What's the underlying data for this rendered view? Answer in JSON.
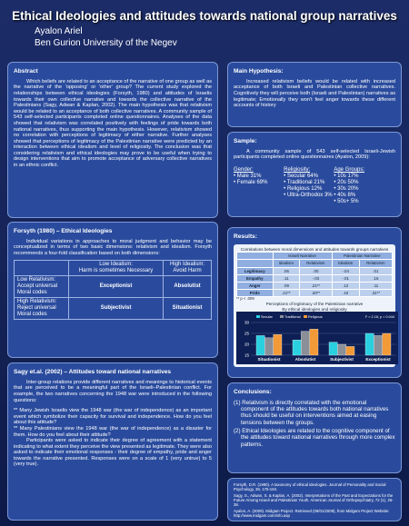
{
  "header": {
    "title": "Ethical Ideologies and attitudes towards national group narratives",
    "author": "Ayalon Ariel",
    "affiliation": "Ben Gurion University of the Negev"
  },
  "abstract": {
    "heading": "Abstract",
    "text": "Which beliefs are related to an acceptance of the narrative of one group as well as the narrative of the 'opposing' or 'other' group? The current study explored the relationships between ethical ideologies (Forsyth, 1980) and attitudes of Israelis towards their own collective narrative and towards the collective narrative of the Palestinians (Sagy, Adwan & Kaplan, 2002). The main hypothesis was that relativism would be related to an acceptance of both collective narratives. A community sample of 543 self-selected participants completed online questionnaires. Analyses of the data showed that relativism was correlated positively with feelings of pride towards both national narratives, thus supporting the main hypothesis. However, relativism showed no correlation with perceptions of legitimacy of either narrative. Further analyses showed that perceptions of legitimacy of the Palestinian narrative were predicted by an interaction between ethical idealism and level of religiosity. The conclusion was that considering relativism and ethical ideologies may prove to be useful when trying to design interventions that aim to promote acceptance of adversary collective narratives in an ethnic conflict."
  },
  "forsyth": {
    "heading": "Forsyth (1980) – Ethical Ideologies",
    "text": "Individual variations in approaches to moral judgment and behavior may be conceptualized in terms of two basic dimensions: relativism and idealism. Forsyth recommends a four-fold classification based on both dimensions:",
    "table": {
      "columns": [
        [
          "Low Idealism:",
          "Harm is sometimes Necessary"
        ],
        [
          "High Idealism:",
          "Avoid Harm"
        ]
      ],
      "rows": [
        {
          "label": [
            "Low Relativism:",
            "Accept universal",
            "Moral codes"
          ],
          "cells": [
            "Exceptionist",
            "Absolutist"
          ]
        },
        {
          "label": [
            "High Relativism:",
            "Reject universal",
            "Moral codes"
          ],
          "cells": [
            "Subjectivist",
            "Situationist"
          ]
        }
      ]
    }
  },
  "sagy": {
    "heading": "Sagy et.al. (2002) – Attitudes toward national narratives",
    "paragraphs": [
      "Inter-group relations provide different narratives and meanings to historical events that are perceived to be a meaningful part of the Israeli–Palestinian conflict. For example, the two narratives concerning the 1948 war were introduced in the following questions:",
      "** Many Jewish Israelis view the 1948 war (the war of independence) as an important event which symbolize their capacity for survival and independence. How do you feel about this attitude?",
      "** Many Palestinians view the 1948 war (the war of independence) as a disaster for them. How do you feel about their attitude?",
      "Participants were asked to indicate their degree of agreement with a statement indicating to what extent they perceive the view presented as legitimate. They were also asked to indicate their emotional responses - their degree of empathy, pride and anger towards the narrative presented. Responses were on a scale of 1 (very untrue) to 5 (very true)."
    ]
  },
  "hypothesis": {
    "heading": "Main Hypothesis:",
    "text": "Increased relativism beliefs would be related with increased acceptance of both Israeli and Palestinian collective narratives. Cognitively they will perceive both (Israeli and Palestinian) narratives as legitimate; Emotionally they won't feel anger towards these different accounts of history"
  },
  "sample": {
    "heading": "Sample:",
    "text": "A community sample of 543 self-selected Israeli-Jewish participants completed online questionnaires (Ayalon, 2009):",
    "groups": [
      {
        "title": "Gender:",
        "items": [
          "Male 31%",
          "Female 69%"
        ]
      },
      {
        "title": "Religiosity:",
        "items": [
          "Secular 64%",
          "Traditional 21%",
          "Religious 12%",
          "Ultra-Orthodox 3%"
        ]
      },
      {
        "title": "Age Groups:",
        "items": [
          "10s 17%",
          "20s 50%",
          "30s 20%",
          "40s 8%",
          "50s+ 5%"
        ]
      }
    ]
  },
  "results": {
    "heading": "Results:",
    "subtitle": "Correlations between moral dimensions and attitudes towards groups narratives",
    "table": {
      "groups": [
        "Israeli Narrative",
        "Palestinian Narrative"
      ],
      "columns": [
        "Idealism",
        "Relativism",
        "Idealism",
        "Relativism"
      ],
      "rows": [
        {
          "label": "Legitimacy",
          "cells": [
            ".06",
            ".00",
            "-.04",
            ".01"
          ]
        },
        {
          "label": "Empathy",
          "cells": [
            ".11",
            "-.03",
            "-.01",
            ".16"
          ]
        },
        {
          "label": "Anger",
          "cells": [
            ".09",
            ".21**",
            ".12",
            ".11"
          ]
        },
        {
          "label": "Pride",
          "cells": [
            ".21**",
            ".20**",
            ".10",
            ".31**"
          ]
        }
      ]
    },
    "note": "** p < .009"
  },
  "chart_data": {
    "type": "bar",
    "title": "Perceptions of legitimacy of the Palestinian narrative",
    "subtitle": "By ethical ideologies and religiosity",
    "annotation": "F = 2.18, p = 0.044",
    "categories": [
      "Situationist",
      "Absolutist",
      "Subjectivist",
      "Exceptionist"
    ],
    "series": [
      {
        "name": "Secular",
        "color": "#2ad0e0",
        "values": [
          24,
          22,
          21,
          25
        ]
      },
      {
        "name": "Traditional",
        "color": "#8a8f98",
        "values": [
          23,
          26,
          20,
          24
        ]
      },
      {
        "name": "Religious",
        "color": "#f29a38",
        "values": [
          24.5,
          27,
          19,
          25
        ]
      }
    ],
    "ylim": [
      15,
      30
    ],
    "yticks": [
      15,
      20,
      25,
      30
    ]
  },
  "conclusions": {
    "heading": "Conclusions:",
    "items": [
      "(1) Relativism is directly correlated with the emotional component of the attitudes towards both national narratives thus should be useful on interventions aimed at easing tensions between the groups.",
      "(2) Ethical Ideologies are related to the cognitive component of the attitudes toward national narratives through more complex patterns."
    ]
  },
  "references": {
    "items": [
      "Forsyth, D.R. (1980). A taxonomy of ethical ideologies. Journal of Personality and Social Psychology, 39, 175-184.",
      "Sagy, S., Adwan, S. & Kaplan, A. (2002). Interpretations of the Past and Expectations for the Future Among Israeli and Palestinian Youth. American Journal of Orthopsychiatry, 72 (1), 26-38.",
      "Ayalon, A. (2009). Midgam Project. Retrieved (09/01/2009), from Midgam Project Website: http://www.midgam.com/info.asp"
    ]
  }
}
